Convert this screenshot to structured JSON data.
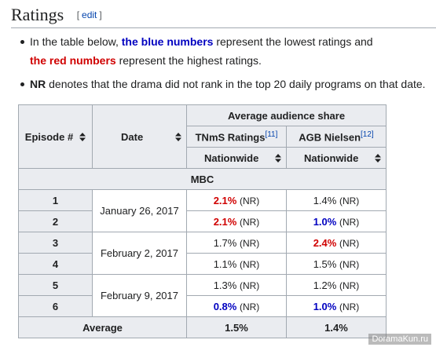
{
  "header": {
    "title": "Ratings",
    "edit": {
      "open": "[",
      "label": "edit",
      "close": "]"
    }
  },
  "notes": [
    {
      "segments": [
        {
          "text": "In the table below, "
        },
        {
          "text": "the blue numbers",
          "color": "blue"
        },
        {
          "text": " represent the lowest ratings and "
        },
        {
          "text": "the red numbers",
          "color": "red"
        },
        {
          "text": " represent the highest ratings."
        }
      ]
    },
    {
      "segments": [
        {
          "text": "NR",
          "bold": true
        },
        {
          "text": " denotes that the drama did not rank in the top 20 daily programs on that date."
        }
      ]
    }
  ],
  "table": {
    "headers": {
      "episode": "Episode #",
      "date": "Date",
      "group": "Average audience share",
      "tnms": {
        "label": "TNmS Ratings",
        "ref": "[11]"
      },
      "agb": {
        "label": "AGB Nielsen",
        "ref": "[12]"
      },
      "region": [
        "Nationwide",
        "Nationwide"
      ]
    },
    "section": "MBC",
    "dates": [
      "January 26, 2017",
      "February 2, 2017",
      "February 9, 2017"
    ],
    "rows": [
      {
        "episode": 1,
        "tnms": {
          "value": "2.1%",
          "note": "(NR)",
          "color": "red"
        },
        "agb": {
          "value": "1.4%",
          "note": "(NR)"
        }
      },
      {
        "episode": 2,
        "tnms": {
          "value": "2.1%",
          "note": "(NR)",
          "color": "red"
        },
        "agb": {
          "value": "1.0%",
          "note": "(NR)",
          "color": "blue"
        }
      },
      {
        "episode": 3,
        "tnms": {
          "value": "1.7%",
          "note": "(NR)"
        },
        "agb": {
          "value": "2.4%",
          "note": "(NR)",
          "color": "red"
        }
      },
      {
        "episode": 4,
        "tnms": {
          "value": "1.1%",
          "note": "(NR)"
        },
        "agb": {
          "value": "1.5%",
          "note": "(NR)"
        }
      },
      {
        "episode": 5,
        "tnms": {
          "value": "1.3%",
          "note": "(NR)"
        },
        "agb": {
          "value": "1.2%",
          "note": "(NR)"
        }
      },
      {
        "episode": 6,
        "tnms": {
          "value": "0.8%",
          "note": "(NR)",
          "color": "blue"
        },
        "agb": {
          "value": "1.0%",
          "note": "(NR)",
          "color": "blue"
        }
      }
    ],
    "average": {
      "label": "Average",
      "tnms": "1.5%",
      "agb": "1.4%"
    }
  },
  "watermark": "DoramaKun.ru"
}
